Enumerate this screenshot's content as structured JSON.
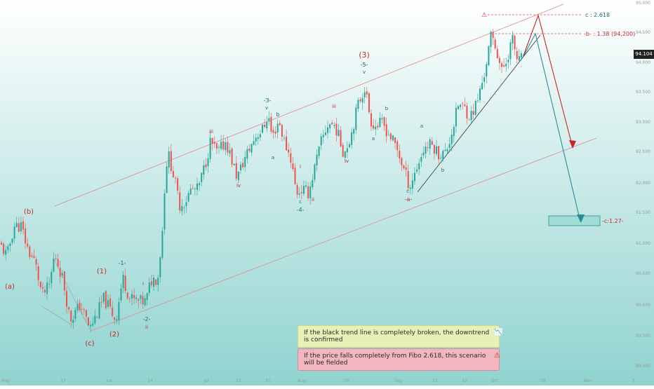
{
  "colors": {
    "bull": "#26a69a",
    "bear": "#ef5350",
    "wave_red": "#c62828",
    "wave_teal": "#17706b",
    "fib_line": "#e05560",
    "channel": "#e08a8a",
    "target_box": "#9fdcd6",
    "target_arrow": "#2a8c96",
    "bg_top": "#ffffff",
    "bg_bottom": "#8fd3cf"
  },
  "chart_data": {
    "type": "candlestick",
    "ylim": [
      89.0,
      95.0
    ],
    "y_ticks": [
      "95.000",
      "94.500",
      "94.000",
      "93.500",
      "93.000",
      "92.500",
      "92.000",
      "91.500",
      "91.000",
      "90.500",
      "90.000",
      "89.500",
      "89.000"
    ],
    "x_ticks": [
      "May",
      "17",
      "Jun",
      "14",
      "Jul",
      "13",
      "21",
      "Aug",
      "16",
      "Sep",
      "13",
      "22",
      "Oct",
      "18",
      "Nov",
      "5"
    ],
    "last_price": "94.104",
    "price_path": [
      [
        0,
        91.0
      ],
      [
        10,
        90.8
      ],
      [
        20,
        91.3
      ],
      [
        30,
        91.3
      ],
      [
        40,
        90.9
      ],
      [
        50,
        90.7
      ],
      [
        60,
        90.15
      ],
      [
        70,
        90.3
      ],
      [
        78,
        90.85
      ],
      [
        90,
        90.4
      ],
      [
        100,
        89.75
      ],
      [
        115,
        90.0
      ],
      [
        128,
        89.6
      ],
      [
        138,
        89.85
      ],
      [
        148,
        90.1
      ],
      [
        158,
        89.9
      ],
      [
        165,
        89.75
      ],
      [
        175,
        90.45
      ],
      [
        185,
        90.1
      ],
      [
        198,
        90.05
      ],
      [
        208,
        90.05
      ],
      [
        215,
        90.4
      ],
      [
        225,
        90.45
      ],
      [
        232,
        91.3
      ],
      [
        236,
        92.3
      ],
      [
        241,
        92.45
      ],
      [
        248,
        92.1
      ],
      [
        256,
        91.65
      ],
      [
        264,
        91.7
      ],
      [
        272,
        91.9
      ],
      [
        282,
        91.9
      ],
      [
        292,
        92.3
      ],
      [
        300,
        92.7
      ],
      [
        310,
        92.5
      ],
      [
        322,
        92.7
      ],
      [
        338,
        92.1
      ],
      [
        350,
        92.45
      ],
      [
        365,
        92.8
      ],
      [
        375,
        92.9
      ],
      [
        382,
        93.15
      ],
      [
        388,
        92.75
      ],
      [
        397,
        93.05
      ],
      [
        405,
        92.7
      ],
      [
        415,
        92.4
      ],
      [
        422,
        91.85
      ],
      [
        430,
        91.9
      ],
      [
        440,
        91.85
      ],
      [
        447,
        92.2
      ],
      [
        458,
        92.7
      ],
      [
        468,
        93.0
      ],
      [
        478,
        92.95
      ],
      [
        490,
        92.5
      ],
      [
        500,
        92.8
      ],
      [
        510,
        93.3
      ],
      [
        520,
        93.6
      ],
      [
        528,
        93.05
      ],
      [
        535,
        92.95
      ],
      [
        545,
        93.0
      ],
      [
        555,
        92.8
      ],
      [
        565,
        92.6
      ],
      [
        575,
        92.25
      ],
      [
        584,
        91.95
      ],
      [
        595,
        92.3
      ],
      [
        605,
        92.6
      ],
      [
        615,
        92.65
      ],
      [
        625,
        92.5
      ],
      [
        635,
        92.5
      ],
      [
        645,
        92.9
      ],
      [
        653,
        93.3
      ],
      [
        662,
        93.25
      ],
      [
        670,
        93.1
      ],
      [
        680,
        93.35
      ],
      [
        690,
        93.8
      ],
      [
        700,
        94.45
      ],
      [
        708,
        94.2
      ],
      [
        715,
        93.85
      ],
      [
        722,
        94.05
      ],
      [
        730,
        94.4
      ],
      [
        738,
        94.0
      ],
      [
        746,
        94.1
      ]
    ]
  },
  "wave_labels": {
    "red": [
      {
        "text": "(a)"
      },
      {
        "text": "(b)"
      },
      {
        "text": "(c)"
      },
      {
        "text": "(1)"
      },
      {
        "text": "(2)"
      },
      {
        "text": "(3)"
      },
      {
        "text": "ii"
      },
      {
        "text": "iii"
      },
      {
        "text": "iv"
      },
      {
        "text": "iii"
      },
      {
        "text": "iv"
      },
      {
        "text": "i"
      },
      {
        "text": "ii"
      },
      {
        "text": "-a-"
      },
      {
        "text": "i"
      }
    ],
    "teal": [
      {
        "text": "-1-"
      },
      {
        "text": "-2-"
      },
      {
        "text": "-3-"
      },
      {
        "text": "v"
      },
      {
        "text": "b"
      },
      {
        "text": "a"
      },
      {
        "text": "c"
      },
      {
        "text": "-4-"
      },
      {
        "text": "-5-"
      },
      {
        "text": "v"
      },
      {
        "text": "b"
      },
      {
        "text": "a"
      },
      {
        "text": "c"
      },
      {
        "text": "a"
      },
      {
        "text": "b"
      }
    ]
  },
  "annotations": {
    "fib_c": "c : 2.618",
    "fib_b": "-b- : 1.38 (94,200)",
    "target": "-c:1.27-",
    "note_green": "If the black trend line is completely broken, the downtrend is confirmed",
    "note_red": "If the price falls completely from Fibo 2.618, this scenario will be fielded",
    "warn_glyph": "⚠",
    "chart_glyph": "📉"
  }
}
